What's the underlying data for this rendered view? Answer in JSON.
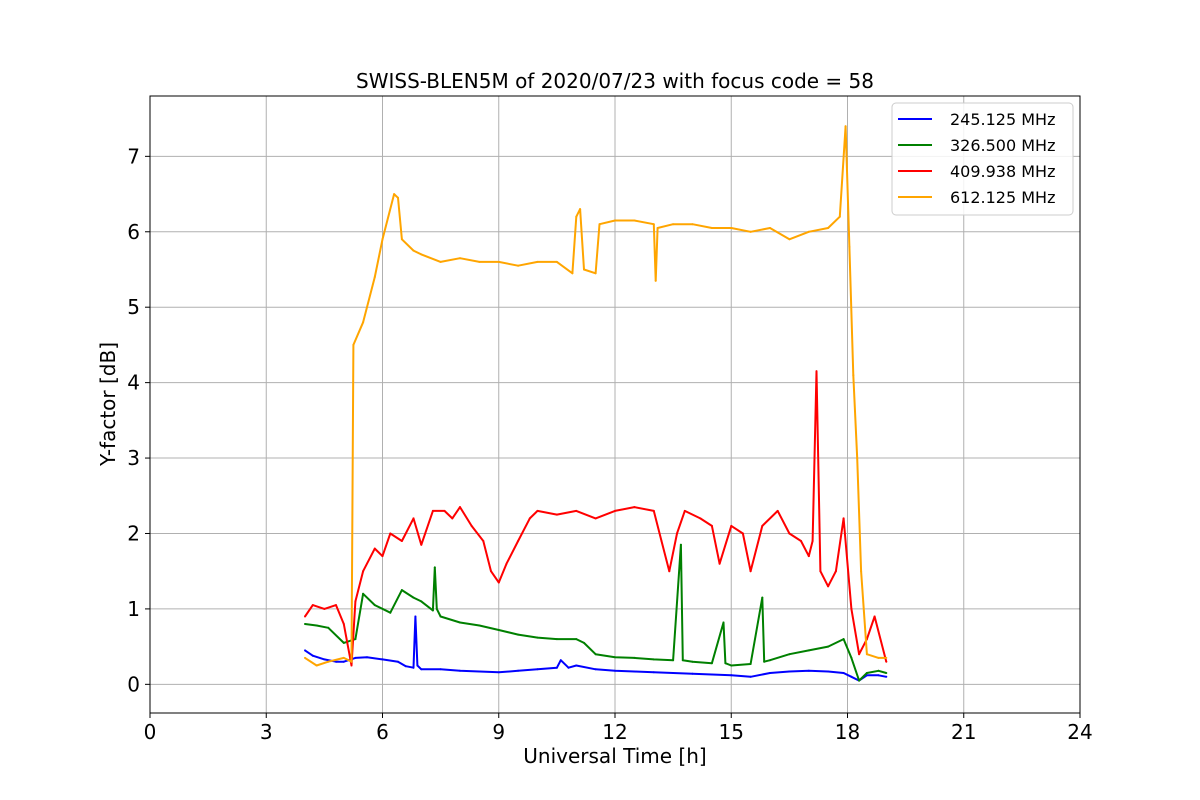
{
  "chart_data": {
    "type": "line",
    "title": "SWISS-BLEN5M of 2020/07/23 with focus code = 58",
    "xlabel": "Universal Time [h]",
    "ylabel": "Y-factor [dB]",
    "xlim": [
      0,
      24
    ],
    "ylim": [
      -0.38,
      7.8
    ],
    "xticks": [
      0,
      3,
      6,
      9,
      12,
      15,
      18,
      21,
      24
    ],
    "yticks": [
      0,
      1,
      2,
      3,
      4,
      5,
      6,
      7
    ],
    "grid": true,
    "legend_position": "top-right",
    "series": [
      {
        "name": "245.125 MHz",
        "color": "#0000ff",
        "points": [
          [
            4.0,
            0.45
          ],
          [
            4.2,
            0.38
          ],
          [
            4.5,
            0.33
          ],
          [
            4.8,
            0.3
          ],
          [
            5.0,
            0.3
          ],
          [
            5.3,
            0.35
          ],
          [
            5.6,
            0.36
          ],
          [
            6.0,
            0.33
          ],
          [
            6.4,
            0.3
          ],
          [
            6.6,
            0.24
          ],
          [
            6.8,
            0.22
          ],
          [
            6.85,
            0.9
          ],
          [
            6.9,
            0.25
          ],
          [
            7.0,
            0.2
          ],
          [
            7.5,
            0.2
          ],
          [
            8.0,
            0.18
          ],
          [
            8.5,
            0.17
          ],
          [
            9.0,
            0.16
          ],
          [
            9.5,
            0.18
          ],
          [
            10.0,
            0.2
          ],
          [
            10.5,
            0.22
          ],
          [
            10.6,
            0.32
          ],
          [
            10.8,
            0.22
          ],
          [
            11.0,
            0.25
          ],
          [
            11.5,
            0.2
          ],
          [
            12.0,
            0.18
          ],
          [
            12.5,
            0.17
          ],
          [
            13.0,
            0.16
          ],
          [
            13.5,
            0.15
          ],
          [
            14.0,
            0.14
          ],
          [
            14.5,
            0.13
          ],
          [
            15.0,
            0.12
          ],
          [
            15.5,
            0.1
          ],
          [
            16.0,
            0.15
          ],
          [
            16.5,
            0.17
          ],
          [
            17.0,
            0.18
          ],
          [
            17.5,
            0.17
          ],
          [
            17.9,
            0.15
          ],
          [
            18.1,
            0.1
          ],
          [
            18.3,
            0.05
          ],
          [
            18.5,
            0.12
          ],
          [
            18.8,
            0.12
          ],
          [
            19.0,
            0.1
          ]
        ]
      },
      {
        "name": "326.500 MHz",
        "color": "#008000",
        "points": [
          [
            4.0,
            0.8
          ],
          [
            4.3,
            0.78
          ],
          [
            4.6,
            0.75
          ],
          [
            5.0,
            0.55
          ],
          [
            5.3,
            0.6
          ],
          [
            5.5,
            1.2
          ],
          [
            5.8,
            1.05
          ],
          [
            6.2,
            0.95
          ],
          [
            6.5,
            1.25
          ],
          [
            6.8,
            1.15
          ],
          [
            7.0,
            1.1
          ],
          [
            7.3,
            0.98
          ],
          [
            7.35,
            1.55
          ],
          [
            7.4,
            1.0
          ],
          [
            7.5,
            0.9
          ],
          [
            8.0,
            0.82
          ],
          [
            8.5,
            0.78
          ],
          [
            9.0,
            0.72
          ],
          [
            9.5,
            0.66
          ],
          [
            10.0,
            0.62
          ],
          [
            10.5,
            0.6
          ],
          [
            11.0,
            0.6
          ],
          [
            11.2,
            0.55
          ],
          [
            11.5,
            0.4
          ],
          [
            12.0,
            0.36
          ],
          [
            12.5,
            0.35
          ],
          [
            13.0,
            0.33
          ],
          [
            13.5,
            0.32
          ],
          [
            13.7,
            1.85
          ],
          [
            13.75,
            0.32
          ],
          [
            14.0,
            0.3
          ],
          [
            14.5,
            0.28
          ],
          [
            14.8,
            0.82
          ],
          [
            14.85,
            0.28
          ],
          [
            15.0,
            0.25
          ],
          [
            15.5,
            0.27
          ],
          [
            15.8,
            1.15
          ],
          [
            15.85,
            0.3
          ],
          [
            16.0,
            0.32
          ],
          [
            16.5,
            0.4
          ],
          [
            17.0,
            0.45
          ],
          [
            17.5,
            0.5
          ],
          [
            17.9,
            0.6
          ],
          [
            18.1,
            0.35
          ],
          [
            18.3,
            0.05
          ],
          [
            18.5,
            0.15
          ],
          [
            18.8,
            0.18
          ],
          [
            19.0,
            0.15
          ]
        ]
      },
      {
        "name": "409.938 MHz",
        "color": "#ff0000",
        "points": [
          [
            4.0,
            0.9
          ],
          [
            4.2,
            1.05
          ],
          [
            4.5,
            1.0
          ],
          [
            4.8,
            1.05
          ],
          [
            5.0,
            0.8
          ],
          [
            5.2,
            0.25
          ],
          [
            5.3,
            1.1
          ],
          [
            5.5,
            1.5
          ],
          [
            5.8,
            1.8
          ],
          [
            6.0,
            1.7
          ],
          [
            6.2,
            2.0
          ],
          [
            6.5,
            1.9
          ],
          [
            6.8,
            2.2
          ],
          [
            7.0,
            1.85
          ],
          [
            7.3,
            2.3
          ],
          [
            7.6,
            2.3
          ],
          [
            7.8,
            2.2
          ],
          [
            8.0,
            2.35
          ],
          [
            8.3,
            2.1
          ],
          [
            8.6,
            1.9
          ],
          [
            8.8,
            1.5
          ],
          [
            9.0,
            1.35
          ],
          [
            9.2,
            1.6
          ],
          [
            9.5,
            1.9
          ],
          [
            9.8,
            2.2
          ],
          [
            10.0,
            2.3
          ],
          [
            10.5,
            2.25
          ],
          [
            11.0,
            2.3
          ],
          [
            11.5,
            2.2
          ],
          [
            12.0,
            2.3
          ],
          [
            12.5,
            2.35
          ],
          [
            13.0,
            2.3
          ],
          [
            13.2,
            1.9
          ],
          [
            13.4,
            1.5
          ],
          [
            13.6,
            2.0
          ],
          [
            13.8,
            2.3
          ],
          [
            14.2,
            2.2
          ],
          [
            14.5,
            2.1
          ],
          [
            14.7,
            1.6
          ],
          [
            15.0,
            2.1
          ],
          [
            15.3,
            2.0
          ],
          [
            15.5,
            1.5
          ],
          [
            15.8,
            2.1
          ],
          [
            16.2,
            2.3
          ],
          [
            16.5,
            2.0
          ],
          [
            16.8,
            1.9
          ],
          [
            17.0,
            1.7
          ],
          [
            17.1,
            1.9
          ],
          [
            17.2,
            4.15
          ],
          [
            17.3,
            1.5
          ],
          [
            17.5,
            1.3
          ],
          [
            17.7,
            1.5
          ],
          [
            17.9,
            2.2
          ],
          [
            18.1,
            1.0
          ],
          [
            18.3,
            0.4
          ],
          [
            18.5,
            0.6
          ],
          [
            18.7,
            0.9
          ],
          [
            19.0,
            0.3
          ]
        ]
      },
      {
        "name": "612.125 MHz",
        "color": "#ffa500",
        "points": [
          [
            4.0,
            0.35
          ],
          [
            4.3,
            0.25
          ],
          [
            4.6,
            0.3
          ],
          [
            5.0,
            0.35
          ],
          [
            5.2,
            0.3
          ],
          [
            5.25,
            4.5
          ],
          [
            5.5,
            4.8
          ],
          [
            5.8,
            5.4
          ],
          [
            6.0,
            5.9
          ],
          [
            6.3,
            6.5
          ],
          [
            6.4,
            6.45
          ],
          [
            6.5,
            5.9
          ],
          [
            6.8,
            5.75
          ],
          [
            7.0,
            5.7
          ],
          [
            7.5,
            5.6
          ],
          [
            8.0,
            5.65
          ],
          [
            8.5,
            5.6
          ],
          [
            9.0,
            5.6
          ],
          [
            9.5,
            5.55
          ],
          [
            10.0,
            5.6
          ],
          [
            10.5,
            5.6
          ],
          [
            10.9,
            5.45
          ],
          [
            11.0,
            6.2
          ],
          [
            11.1,
            6.3
          ],
          [
            11.2,
            5.5
          ],
          [
            11.5,
            5.45
          ],
          [
            11.6,
            6.1
          ],
          [
            12.0,
            6.15
          ],
          [
            12.5,
            6.15
          ],
          [
            13.0,
            6.1
          ],
          [
            13.05,
            5.35
          ],
          [
            13.1,
            6.05
          ],
          [
            13.5,
            6.1
          ],
          [
            14.0,
            6.1
          ],
          [
            14.5,
            6.05
          ],
          [
            15.0,
            6.05
          ],
          [
            15.5,
            6.0
          ],
          [
            16.0,
            6.05
          ],
          [
            16.5,
            5.9
          ],
          [
            17.0,
            6.0
          ],
          [
            17.5,
            6.05
          ],
          [
            17.8,
            6.2
          ],
          [
            17.95,
            7.4
          ],
          [
            18.05,
            5.8
          ],
          [
            18.15,
            4.1
          ],
          [
            18.25,
            3.0
          ],
          [
            18.35,
            1.5
          ],
          [
            18.5,
            0.4
          ],
          [
            18.8,
            0.35
          ],
          [
            19.0,
            0.35
          ]
        ]
      }
    ]
  }
}
